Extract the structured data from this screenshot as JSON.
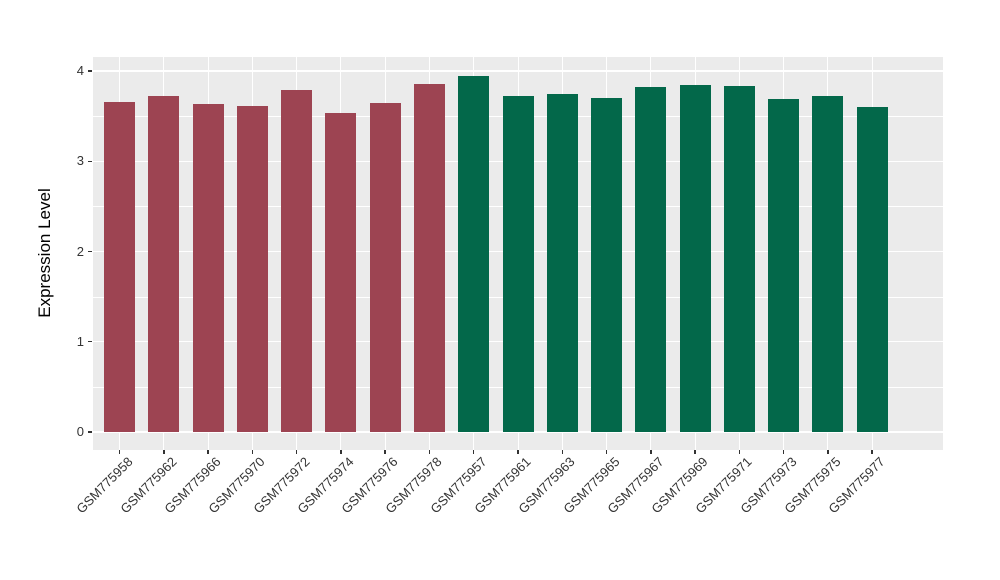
{
  "chart_data": {
    "type": "bar",
    "title": "",
    "xlabel": "",
    "ylabel": "Expression Level",
    "ylim": [
      0,
      4.2
    ],
    "yticks": [
      0,
      1,
      2,
      3,
      4
    ],
    "ytick_labels": [
      "0",
      "1",
      "2",
      "3",
      "4"
    ],
    "y_minor_ticks": [
      0.5,
      1.5,
      2.5,
      3.5
    ],
    "grid": "white major and minor gridlines on grey panel",
    "legend_position": "none",
    "panel_background": "#EBEBEB",
    "grid_color": "#FFFFFF",
    "axis_text_color": "#333333",
    "series": [
      {
        "name": "red-group",
        "color": "#9D4452",
        "labels": [
          "GSM775958",
          "GSM775962",
          "GSM775966",
          "GSM775970",
          "GSM775972",
          "GSM775974",
          "GSM775976",
          "GSM775978"
        ],
        "values": [
          3.66,
          3.72,
          3.64,
          3.61,
          3.79,
          3.54,
          3.65,
          3.86
        ]
      },
      {
        "name": "green-group",
        "color": "#03684A",
        "labels": [
          "GSM775957",
          "GSM775961",
          "GSM775963",
          "GSM775965",
          "GSM775967",
          "GSM775969",
          "GSM775971",
          "GSM775973",
          "GSM775975",
          "GSM775977"
        ],
        "values": [
          3.94,
          3.72,
          3.74,
          3.7,
          3.82,
          3.85,
          3.83,
          3.69,
          3.72,
          3.6
        ]
      }
    ]
  }
}
